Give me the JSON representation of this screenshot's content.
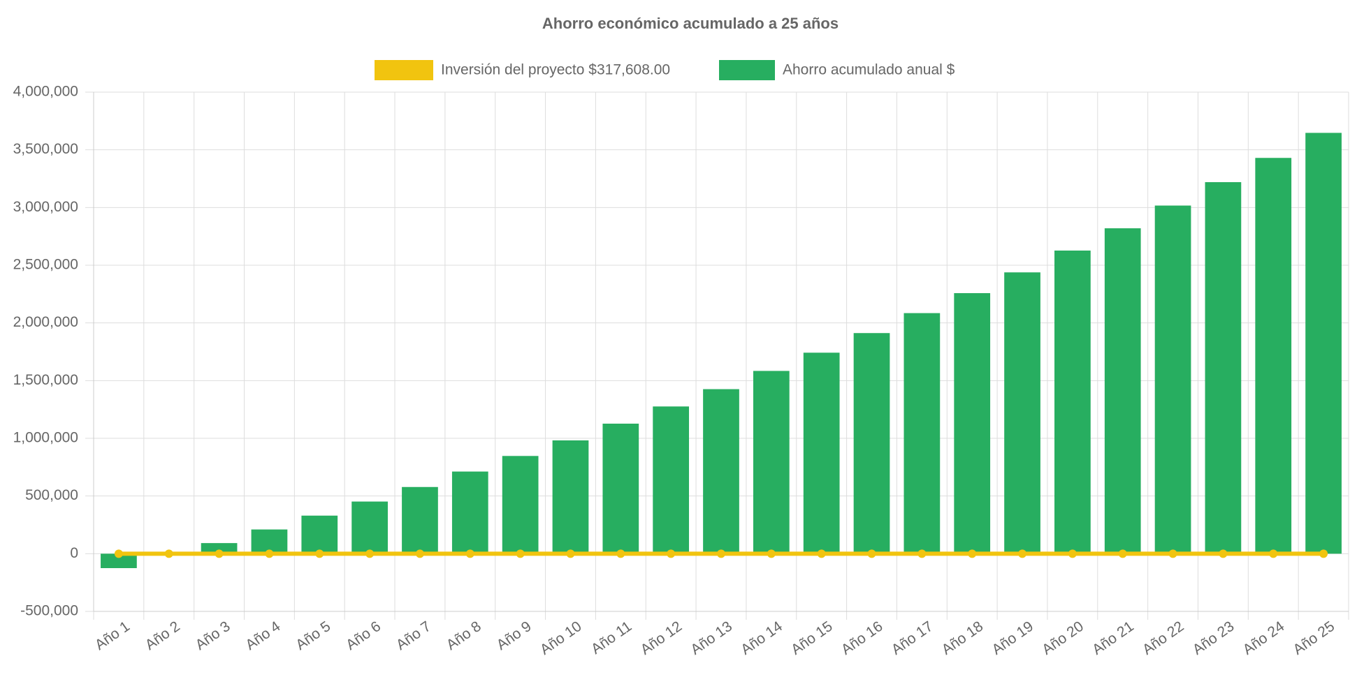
{
  "chart_data": {
    "type": "bar-line",
    "title": "Ahorro económico acumulado a 25 años",
    "categories": [
      "Año 1",
      "Año 2",
      "Año 3",
      "Año 4",
      "Año 5",
      "Año 6",
      "Año 7",
      "Año 8",
      "Año 9",
      "Año 10",
      "Año 11",
      "Año 12",
      "Año 13",
      "Año 14",
      "Año 15",
      "Año 16",
      "Año 17",
      "Año 18",
      "Año 19",
      "Año 20",
      "Año 21",
      "Año 22",
      "Año 23",
      "Año 24",
      "Año 25"
    ],
    "series": [
      {
        "name": "Inversión del proyecto $317,608.00",
        "type": "line",
        "color": "#f1c40f",
        "values": [
          0,
          0,
          0,
          0,
          0,
          0,
          0,
          0,
          0,
          0,
          0,
          0,
          0,
          0,
          0,
          0,
          0,
          0,
          0,
          0,
          0,
          0,
          0,
          0,
          0
        ]
      },
      {
        "name": "Ahorro acumulado anual $",
        "type": "bar",
        "color": "#27ae60",
        "values": [
          -125000,
          -10000,
          92000,
          210000,
          330000,
          452000,
          578000,
          712000,
          847000,
          982000,
          1127000,
          1276000,
          1426000,
          1584000,
          1742000,
          1912000,
          2085000,
          2258000,
          2438000,
          2627000,
          2820000,
          3017000,
          3220000,
          3430000,
          3647000
        ]
      }
    ],
    "ylim": [
      -500000,
      4000000
    ],
    "yticks": [
      {
        "value": -500000,
        "label": "-500,000"
      },
      0,
      {
        "value": 500000,
        "label": "500,000"
      },
      {
        "value": 1000000,
        "label": "1,000,000"
      },
      {
        "value": 1500000,
        "label": "1,500,000"
      },
      {
        "value": 2000000,
        "label": "2,000,000"
      },
      {
        "value": 2500000,
        "label": "2,500,000"
      },
      {
        "value": 3000000,
        "label": "3,000,000"
      },
      {
        "value": 3500000,
        "label": "3,500,000"
      },
      {
        "value": 4000000,
        "label": "4,000,000"
      }
    ],
    "grid": true
  }
}
